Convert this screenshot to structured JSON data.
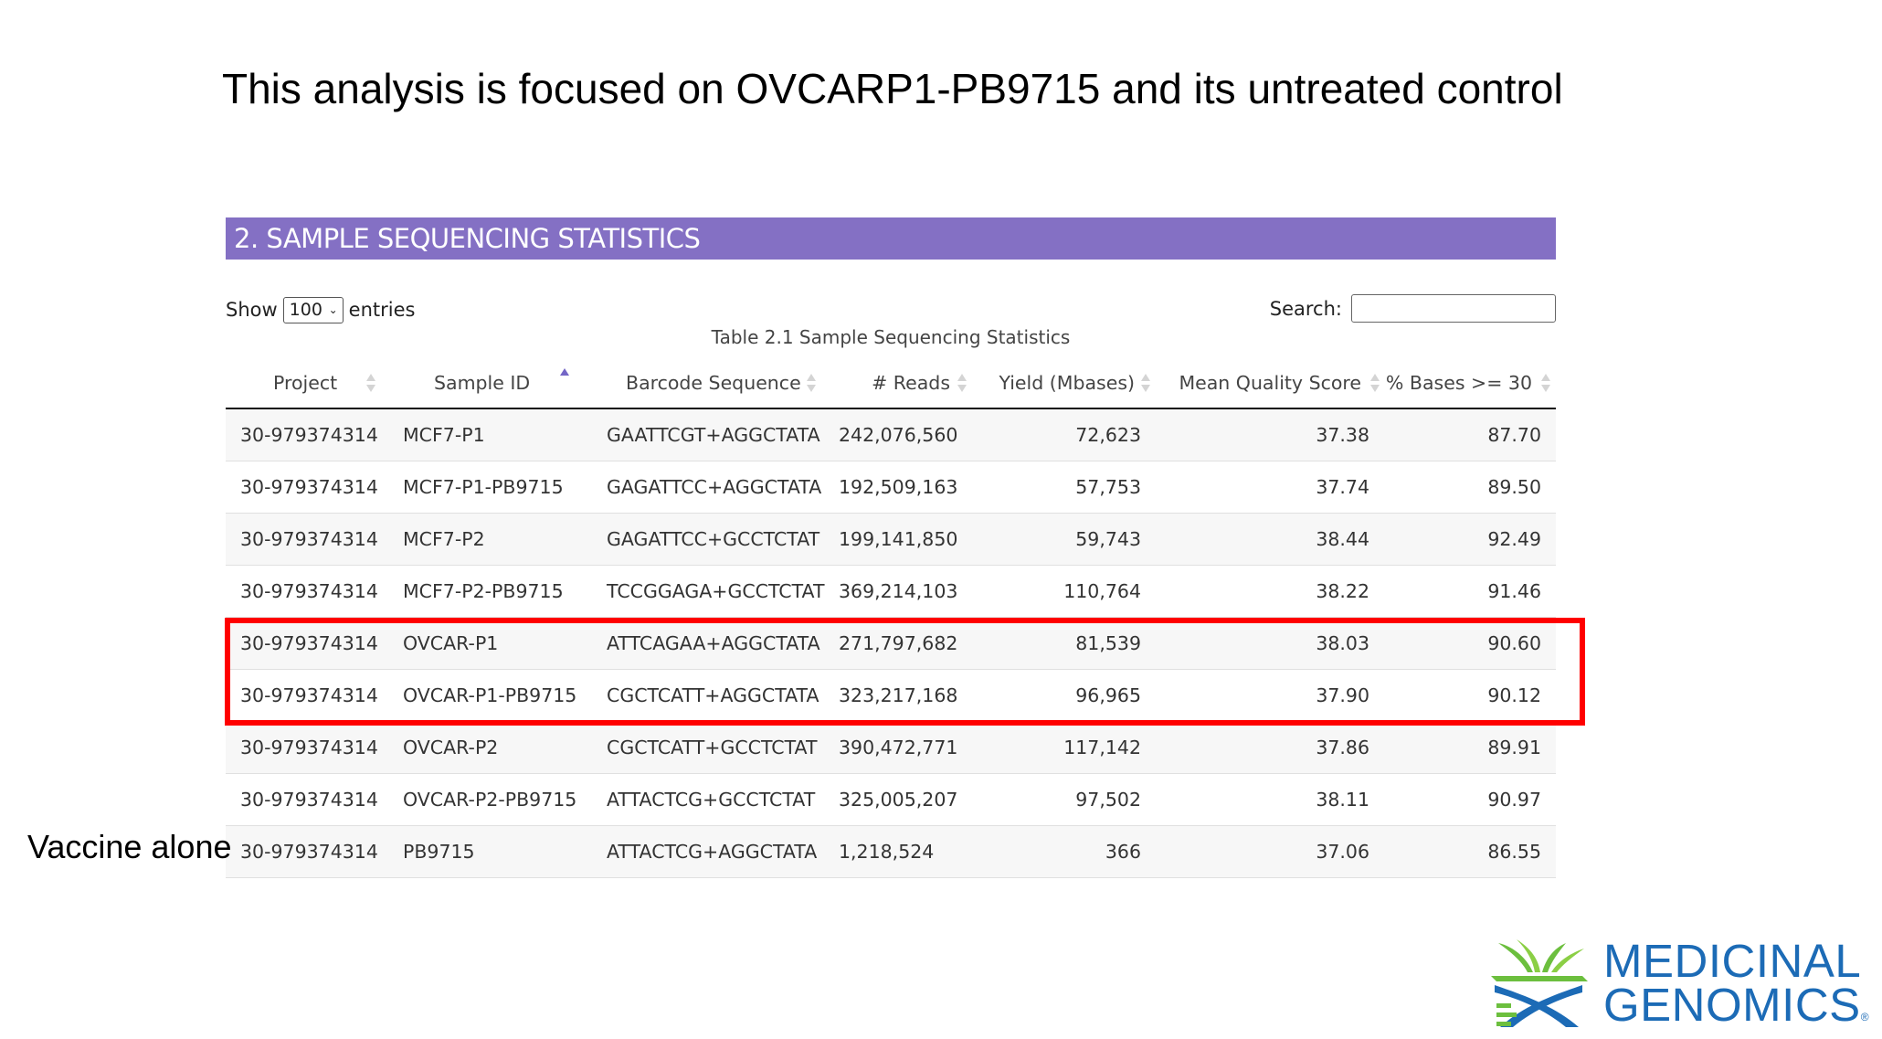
{
  "slide": {
    "title": "This analysis is focused on OVCARP1-PB9715 and its untreated control",
    "side_note": "Vaccine alone"
  },
  "section": {
    "heading": "2. SAMPLE SEQUENCING STATISTICS"
  },
  "controls": {
    "show_label": "Show",
    "entries_value": "100",
    "entries_label": "entries",
    "search_label": "Search:",
    "search_value": ""
  },
  "table": {
    "caption": "Table 2.1 Sample Sequencing Statistics",
    "columns": [
      "Project",
      "Sample ID",
      "Barcode Sequence",
      "# Reads",
      "Yield (Mbases)",
      "Mean Quality Score",
      "% Bases >= 30"
    ],
    "sorted_column": "Sample ID",
    "sort_direction": "ascending",
    "rows": [
      [
        "30-979374314",
        "MCF7-P1",
        "GAATTCGT+AGGCTATA",
        "242,076,560",
        "72,623",
        "37.38",
        "87.70"
      ],
      [
        "30-979374314",
        "MCF7-P1-PB9715",
        "GAGATTCC+AGGCTATA",
        "192,509,163",
        "57,753",
        "37.74",
        "89.50"
      ],
      [
        "30-979374314",
        "MCF7-P2",
        "GAGATTCC+GCCTCTAT",
        "199,141,850",
        "59,743",
        "38.44",
        "92.49"
      ],
      [
        "30-979374314",
        "MCF7-P2-PB9715",
        "TCCGGAGA+GCCTCTAT",
        "369,214,103",
        "110,764",
        "38.22",
        "91.46"
      ],
      [
        "30-979374314",
        "OVCAR-P1",
        "ATTCAGAA+AGGCTATA",
        "271,797,682",
        "81,539",
        "38.03",
        "90.60"
      ],
      [
        "30-979374314",
        "OVCAR-P1-PB9715",
        "CGCTCATT+AGGCTATA",
        "323,217,168",
        "96,965",
        "37.90",
        "90.12"
      ],
      [
        "30-979374314",
        "OVCAR-P2",
        "CGCTCATT+GCCTCTAT",
        "390,472,771",
        "117,142",
        "37.86",
        "89.91"
      ],
      [
        "30-979374314",
        "OVCAR-P2-PB9715",
        "ATTACTCG+GCCTCTAT",
        "325,005,207",
        "97,502",
        "38.11",
        "90.97"
      ],
      [
        "30-979374314",
        "PB9715",
        "ATTACTCG+AGGCTATA",
        "1,218,524",
        "366",
        "37.06",
        "86.55"
      ]
    ]
  },
  "logo": {
    "line1": "MEDICINAL",
    "line2": "GENOMICS",
    "registered": "®"
  },
  "colors": {
    "section_bar": "#8470c4",
    "highlight": "#ff0000",
    "logo_blue": "#1c6bb6",
    "logo_green": "#6cbf3e",
    "sort_active": "#7466c6"
  }
}
